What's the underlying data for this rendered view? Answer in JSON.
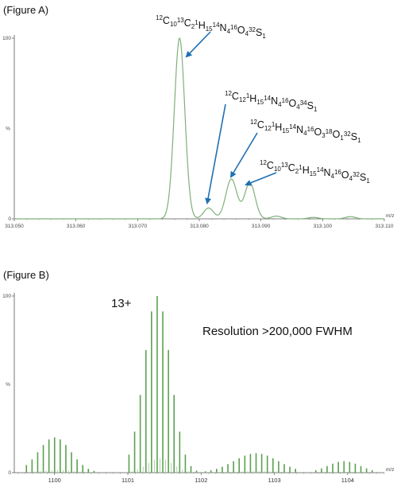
{
  "chart_data": [
    {
      "type": "line",
      "figure_label": "(Figure A)",
      "xlabel": "m/z",
      "ylabel": "%",
      "xlim": [
        313.05,
        313.11
      ],
      "ylim": [
        0,
        100
      ],
      "x_ticks": [
        "313.050",
        "313.060",
        "313.070",
        "313.080",
        "313.090",
        "313.100",
        "313.110"
      ],
      "y_ticks": [
        "0",
        "100"
      ],
      "peaks": [
        {
          "mz": 313.0768,
          "intensity": 100,
          "width": 0.00085
        },
        {
          "mz": 313.0815,
          "intensity": 6,
          "width": 0.0008
        },
        {
          "mz": 313.0852,
          "intensity": 22,
          "width": 0.0009
        },
        {
          "mz": 313.0882,
          "intensity": 20,
          "width": 0.00085
        },
        {
          "mz": 313.0925,
          "intensity": 1.5,
          "width": 0.0008
        },
        {
          "mz": 313.0985,
          "intensity": 0.8,
          "width": 0.0008
        },
        {
          "mz": 313.1045,
          "intensity": 1.2,
          "width": 0.0008
        }
      ],
      "annotations": [
        {
          "id": "ann1",
          "parts": [
            [
              "12",
              "C"
            ],
            [
              "",
              "10"
            ],
            [
              "13",
              "C"
            ],
            [
              "",
              "2"
            ],
            [
              "1",
              "H"
            ],
            [
              "",
              "15"
            ],
            [
              "14",
              "N"
            ],
            [
              "",
              "4"
            ],
            [
              "16",
              "O"
            ],
            [
              "",
              "4"
            ],
            [
              "32",
              "S"
            ],
            [
              "",
              "1"
            ]
          ],
          "target_mz": 313.0768,
          "target_intensity": 100
        },
        {
          "id": "ann2",
          "parts": [
            [
              "12",
              "C"
            ],
            [
              "",
              "12"
            ],
            [
              "1",
              "H"
            ],
            [
              "",
              "15"
            ],
            [
              "14",
              "N"
            ],
            [
              "",
              "4"
            ],
            [
              "16",
              "O"
            ],
            [
              "",
              "4"
            ],
            [
              "34",
              "S"
            ],
            [
              "",
              "1"
            ]
          ],
          "target_mz": 313.0815,
          "target_intensity": 6
        },
        {
          "id": "ann3",
          "parts": [
            [
              "12",
              "C"
            ],
            [
              "",
              "12"
            ],
            [
              "1",
              "H"
            ],
            [
              "",
              "15"
            ],
            [
              "14",
              "N"
            ],
            [
              "",
              "4"
            ],
            [
              "16",
              "O"
            ],
            [
              "",
              "3"
            ],
            [
              "18",
              "O"
            ],
            [
              "",
              "1"
            ],
            [
              "32",
              "S"
            ],
            [
              "",
              "1"
            ]
          ],
          "target_mz": 313.0852,
          "target_intensity": 22
        },
        {
          "id": "ann4",
          "parts": [
            [
              "12",
              "C"
            ],
            [
              "",
              "10"
            ],
            [
              "13",
              "C"
            ],
            [
              "",
              "2"
            ],
            [
              "1",
              "H"
            ],
            [
              "",
              "15"
            ],
            [
              "14",
              "N"
            ],
            [
              "",
              "4"
            ],
            [
              "16",
              "O"
            ],
            [
              "",
              "4"
            ],
            [
              "32",
              "S"
            ],
            [
              "",
              "1"
            ]
          ],
          "target_mz": 313.0882,
          "target_intensity": 20
        }
      ]
    },
    {
      "type": "bar",
      "figure_label": "(Figure B)",
      "xlabel": "m/z",
      "ylabel": "%",
      "xlim": [
        1099.45,
        1104.5
      ],
      "ylim": [
        0,
        100
      ],
      "x_ticks": [
        "1100",
        "1101",
        "1102",
        "1103",
        "1104"
      ],
      "y_ticks": [
        "0",
        "100"
      ],
      "charge_label": "13+",
      "resolution_label": "Resolution >200,000 FWHM",
      "spacing": 0.0769,
      "envelopes": [
        {
          "center": 1100.0,
          "sigma": 0.22,
          "height": 20,
          "start": 1099.55,
          "end": 1100.65
        },
        {
          "center": 1101.4,
          "sigma": 0.18,
          "height": 100,
          "start": 1101.0,
          "end": 1101.95
        },
        {
          "center": 1102.75,
          "sigma": 0.3,
          "height": 11,
          "start": 1102.05,
          "end": 1103.35
        },
        {
          "center": 1103.95,
          "sigma": 0.22,
          "height": 6.5,
          "start": 1103.55,
          "end": 1104.4
        }
      ]
    }
  ]
}
